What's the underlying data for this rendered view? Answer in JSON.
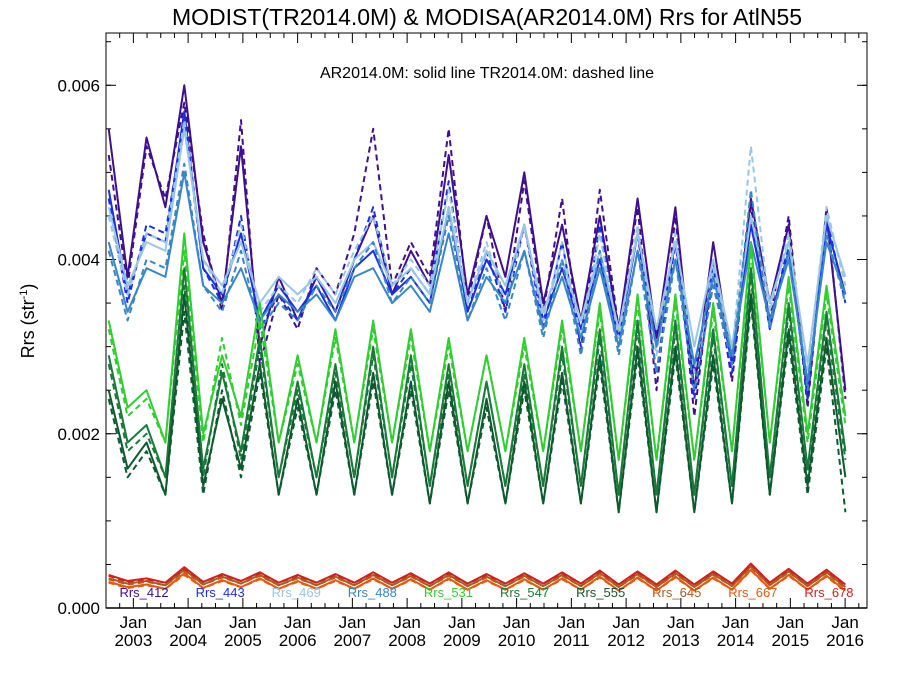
{
  "chart_data": {
    "type": "line",
    "title": "MODIST(TR2014.0M) & MODISA(AR2014.0M)  Rrs for AtlN55",
    "annotation": "AR2014.0M: solid line   TR2014.0M: dashed line",
    "ylabel": "Rrs (str",
    "ylabel_sup": "-1",
    "ylabel_close": ")",
    "ylim": [
      0.0,
      0.0066
    ],
    "xlim": [
      2002.5,
      2016.4
    ],
    "y_ticks": [
      {
        "v": 0.0,
        "label": "0.000"
      },
      {
        "v": 0.002,
        "label": "0.002"
      },
      {
        "v": 0.004,
        "label": "0.004"
      },
      {
        "v": 0.006,
        "label": "0.006"
      }
    ],
    "x_ticks": [
      {
        "v": 2003.0,
        "top": "Jan",
        "bottom": "2003"
      },
      {
        "v": 2004.0,
        "top": "Jan",
        "bottom": "2004"
      },
      {
        "v": 2005.0,
        "top": "Jan",
        "bottom": "2005"
      },
      {
        "v": 2006.0,
        "top": "Jan",
        "bottom": "2006"
      },
      {
        "v": 2007.0,
        "top": "Jan",
        "bottom": "2007"
      },
      {
        "v": 2008.0,
        "top": "Jan",
        "bottom": "2008"
      },
      {
        "v": 2009.0,
        "top": "Jan",
        "bottom": "2009"
      },
      {
        "v": 2010.0,
        "top": "Jan",
        "bottom": "2010"
      },
      {
        "v": 2011.0,
        "top": "Jan",
        "bottom": "2011"
      },
      {
        "v": 2012.0,
        "top": "Jan",
        "bottom": "2012"
      },
      {
        "v": 2013.0,
        "top": "Jan",
        "bottom": "2013"
      },
      {
        "v": 2014.0,
        "top": "Jan",
        "bottom": "2014"
      },
      {
        "v": 2015.0,
        "top": "Jan",
        "bottom": "2015"
      },
      {
        "v": 2016.0,
        "top": "Jan",
        "bottom": "2016"
      }
    ],
    "legend_position": "bottom",
    "series": [
      {
        "name": "Rrs_412",
        "color": "#3f0f8c",
        "solid": [
          0.0055,
          0.0038,
          0.0054,
          0.0046,
          0.006,
          0.0042,
          0.0035,
          0.0053,
          0.003,
          0.0038,
          0.0033,
          0.0038,
          0.0034,
          0.004,
          0.0045,
          0.0036,
          0.0041,
          0.0037,
          0.0052,
          0.0036,
          0.0045,
          0.0038,
          0.005,
          0.0035,
          0.0044,
          0.0033,
          0.0045,
          0.0032,
          0.0047,
          0.0031,
          0.0046,
          0.0025,
          0.0042,
          0.0028,
          0.0047,
          0.0035,
          0.0044,
          0.0024,
          0.0045,
          0.0025
        ],
        "dashed": [
          0.0052,
          0.0037,
          0.0053,
          0.0047,
          0.0058,
          0.0043,
          0.0034,
          0.0056,
          0.0028,
          0.0036,
          0.0032,
          0.0039,
          0.0036,
          0.0043,
          0.0055,
          0.0037,
          0.0042,
          0.0038,
          0.0055,
          0.0035,
          0.0045,
          0.0034,
          0.0049,
          0.0034,
          0.0047,
          0.0029,
          0.0048,
          0.0032,
          0.0046,
          0.0025,
          0.0045,
          0.0022,
          0.004,
          0.0026,
          0.0046,
          0.0033,
          0.0045,
          0.0023,
          0.0046,
          0.0024
        ]
      },
      {
        "name": "Rrs_443",
        "color": "#1a2fe0",
        "solid": [
          0.0048,
          0.0036,
          0.0043,
          0.0042,
          0.0057,
          0.0039,
          0.0036,
          0.0043,
          0.0033,
          0.0037,
          0.0034,
          0.0037,
          0.0033,
          0.0039,
          0.0041,
          0.0036,
          0.0038,
          0.0035,
          0.0046,
          0.0034,
          0.004,
          0.0036,
          0.0044,
          0.0033,
          0.0039,
          0.0032,
          0.004,
          0.0031,
          0.0043,
          0.003,
          0.0042,
          0.0027,
          0.0039,
          0.0028,
          0.0044,
          0.0033,
          0.0041,
          0.0025,
          0.0044,
          0.0036
        ],
        "dashed": [
          0.0047,
          0.0035,
          0.0044,
          0.0043,
          0.0056,
          0.0039,
          0.0035,
          0.0045,
          0.0032,
          0.0036,
          0.0033,
          0.0038,
          0.0034,
          0.004,
          0.0046,
          0.0036,
          0.0039,
          0.0036,
          0.0049,
          0.0034,
          0.0041,
          0.0034,
          0.0044,
          0.0032,
          0.0042,
          0.003,
          0.0044,
          0.0031,
          0.0043,
          0.0027,
          0.0042,
          0.0024,
          0.0038,
          0.0027,
          0.0045,
          0.0032,
          0.0042,
          0.0024,
          0.0045,
          0.0035
        ]
      },
      {
        "name": "Rrs_469",
        "color": "#9ac6e6",
        "solid": [
          0.0046,
          0.0037,
          0.0042,
          0.0041,
          0.0055,
          0.004,
          0.0037,
          0.0042,
          0.0035,
          0.0038,
          0.0036,
          0.0038,
          0.0035,
          0.004,
          0.0042,
          0.0037,
          0.0039,
          0.0036,
          0.0046,
          0.0035,
          0.0041,
          0.0037,
          0.0044,
          0.0034,
          0.004,
          0.0033,
          0.0041,
          0.0032,
          0.0043,
          0.0032,
          0.0042,
          0.003,
          0.004,
          0.003,
          0.0045,
          0.0035,
          0.0042,
          0.0028,
          0.0045,
          0.0038
        ],
        "dashed": [
          0.0045,
          0.0036,
          0.0043,
          0.0042,
          0.0056,
          0.004,
          0.0036,
          0.0044,
          0.0034,
          0.0037,
          0.0035,
          0.0039,
          0.0036,
          0.0041,
          0.0045,
          0.0037,
          0.004,
          0.0037,
          0.0048,
          0.0035,
          0.0042,
          0.0035,
          0.0044,
          0.0033,
          0.0042,
          0.0031,
          0.0043,
          0.0031,
          0.0044,
          0.0029,
          0.0043,
          0.0027,
          0.0039,
          0.0029,
          0.0053,
          0.0034,
          0.0043,
          0.0027,
          0.0046,
          0.0037
        ]
      },
      {
        "name": "Rrs_488",
        "color": "#3a86c4",
        "solid": [
          0.0042,
          0.0034,
          0.0039,
          0.0038,
          0.005,
          0.0037,
          0.0035,
          0.0039,
          0.0033,
          0.0036,
          0.0034,
          0.0036,
          0.0033,
          0.0038,
          0.0039,
          0.0035,
          0.0037,
          0.0034,
          0.0043,
          0.0033,
          0.0038,
          0.0035,
          0.0041,
          0.0032,
          0.0038,
          0.0031,
          0.0039,
          0.003,
          0.0041,
          0.003,
          0.004,
          0.0028,
          0.0038,
          0.0029,
          0.0042,
          0.0033,
          0.004,
          0.0026,
          0.0042,
          0.0036
        ],
        "dashed": [
          0.0041,
          0.0033,
          0.004,
          0.0039,
          0.0051,
          0.0037,
          0.0034,
          0.0041,
          0.0032,
          0.0035,
          0.0033,
          0.0037,
          0.0034,
          0.0039,
          0.0042,
          0.0035,
          0.0038,
          0.0035,
          0.0045,
          0.0033,
          0.0039,
          0.0033,
          0.0041,
          0.0031,
          0.004,
          0.0029,
          0.0041,
          0.0029,
          0.0041,
          0.0027,
          0.004,
          0.0025,
          0.0037,
          0.0028,
          0.0048,
          0.0032,
          0.0041,
          0.0025,
          0.0043,
          0.0035
        ]
      },
      {
        "name": "Rrs_531",
        "color": "#33cc33",
        "solid": [
          0.0033,
          0.0023,
          0.0025,
          0.0019,
          0.0043,
          0.002,
          0.0029,
          0.0022,
          0.0035,
          0.0019,
          0.0029,
          0.0019,
          0.0032,
          0.0019,
          0.0033,
          0.0019,
          0.0032,
          0.0018,
          0.0031,
          0.0018,
          0.0029,
          0.0018,
          0.0031,
          0.0018,
          0.0033,
          0.0018,
          0.0035,
          0.0017,
          0.0036,
          0.0017,
          0.0036,
          0.0017,
          0.0035,
          0.0018,
          0.0042,
          0.0019,
          0.0038,
          0.002,
          0.0037,
          0.0022
        ],
        "dashed": [
          0.0032,
          0.0022,
          0.0024,
          0.0019,
          0.0041,
          0.0019,
          0.0031,
          0.0021,
          0.0033,
          0.0019,
          0.0028,
          0.0019,
          0.0031,
          0.0019,
          0.0032,
          0.0019,
          0.0031,
          0.0018,
          0.003,
          0.0018,
          0.0029,
          0.0018,
          0.003,
          0.0018,
          0.0032,
          0.0018,
          0.0034,
          0.0017,
          0.0035,
          0.0017,
          0.0035,
          0.0017,
          0.0034,
          0.0018,
          0.0041,
          0.0019,
          0.0037,
          0.0019,
          0.0036,
          0.0021
        ]
      },
      {
        "name": "Rrs_547",
        "color": "#1a7a3a",
        "solid": [
          0.0029,
          0.0019,
          0.0021,
          0.0015,
          0.0039,
          0.0016,
          0.0027,
          0.0018,
          0.0031,
          0.0015,
          0.0026,
          0.0015,
          0.0028,
          0.0015,
          0.003,
          0.0015,
          0.0029,
          0.0014,
          0.0028,
          0.0014,
          0.0026,
          0.0014,
          0.0028,
          0.0014,
          0.003,
          0.0014,
          0.0032,
          0.0013,
          0.0033,
          0.0013,
          0.0033,
          0.0013,
          0.0032,
          0.0014,
          0.0039,
          0.0015,
          0.0035,
          0.0016,
          0.0034,
          0.0018
        ],
        "dashed": [
          0.0028,
          0.0018,
          0.002,
          0.0015,
          0.0037,
          0.0015,
          0.0028,
          0.0017,
          0.003,
          0.0015,
          0.0025,
          0.0015,
          0.0027,
          0.0015,
          0.0029,
          0.0015,
          0.0028,
          0.0014,
          0.0027,
          0.0014,
          0.0026,
          0.0014,
          0.0027,
          0.0014,
          0.0029,
          0.0014,
          0.0031,
          0.0013,
          0.0032,
          0.0013,
          0.0032,
          0.0013,
          0.0031,
          0.0014,
          0.0038,
          0.0015,
          0.0034,
          0.0015,
          0.0033,
          0.0017
        ]
      },
      {
        "name": "Rrs_555",
        "color": "#0e5a30",
        "solid": [
          0.0025,
          0.0016,
          0.0019,
          0.0013,
          0.0036,
          0.0014,
          0.0024,
          0.0016,
          0.0028,
          0.0013,
          0.0024,
          0.0013,
          0.0026,
          0.0013,
          0.0027,
          0.0013,
          0.0026,
          0.0012,
          0.0026,
          0.0012,
          0.0024,
          0.0012,
          0.0026,
          0.0012,
          0.0027,
          0.0012,
          0.0029,
          0.0011,
          0.003,
          0.0011,
          0.003,
          0.0011,
          0.0029,
          0.0012,
          0.0036,
          0.0013,
          0.0032,
          0.0014,
          0.0031,
          0.0015
        ],
        "dashed": [
          0.0024,
          0.0015,
          0.0018,
          0.0013,
          0.0034,
          0.0013,
          0.0025,
          0.0015,
          0.0027,
          0.0013,
          0.0023,
          0.0013,
          0.0025,
          0.0013,
          0.0026,
          0.0013,
          0.0025,
          0.0012,
          0.0025,
          0.0012,
          0.0023,
          0.0012,
          0.0025,
          0.0012,
          0.0026,
          0.0012,
          0.0028,
          0.0011,
          0.0029,
          0.0011,
          0.0029,
          0.0011,
          0.0028,
          0.0012,
          0.0035,
          0.0013,
          0.0031,
          0.0013,
          0.003,
          0.0011
        ]
      },
      {
        "name": "Rrs_645",
        "color": "#b05a1a",
        "solid": [
          0.00034,
          0.00028,
          0.00031,
          0.00026,
          0.00044,
          0.00027,
          0.00036,
          0.00028,
          0.00038,
          0.00026,
          0.00035,
          0.00026,
          0.00036,
          0.00026,
          0.00038,
          0.00026,
          0.00037,
          0.00025,
          0.00038,
          0.00025,
          0.00036,
          0.00025,
          0.00037,
          0.00025,
          0.00038,
          0.00025,
          0.0004,
          0.00024,
          0.00039,
          0.00024,
          0.0004,
          0.00024,
          0.00039,
          0.00025,
          0.00048,
          0.00026,
          0.00042,
          0.00025,
          0.00041,
          0.00024
        ],
        "dashed": [
          0.00033,
          0.00027,
          0.0003,
          0.00026,
          0.00042,
          0.00027,
          0.00035,
          0.00028,
          0.00037,
          0.00026,
          0.00034,
          0.00026,
          0.00035,
          0.00026,
          0.00037,
          0.00026,
          0.00036,
          0.00025,
          0.00037,
          0.00025,
          0.00035,
          0.00025,
          0.00036,
          0.00025,
          0.00037,
          0.00025,
          0.00039,
          0.00024,
          0.00038,
          0.00024,
          0.00039,
          0.00024,
          0.00038,
          0.00025,
          0.00047,
          0.00026,
          0.00041,
          0.00025,
          0.0004,
          0.00023
        ]
      },
      {
        "name": "Rrs_667",
        "color": "#e05a10",
        "solid": [
          0.0003,
          0.00024,
          0.00027,
          0.00022,
          0.0004,
          0.00023,
          0.00032,
          0.00024,
          0.00034,
          0.00022,
          0.00031,
          0.00022,
          0.00032,
          0.00022,
          0.00034,
          0.00022,
          0.00033,
          0.00021,
          0.00034,
          0.00021,
          0.00032,
          0.00021,
          0.00033,
          0.00021,
          0.00034,
          0.00021,
          0.00036,
          0.0002,
          0.00035,
          0.0002,
          0.00036,
          0.0002,
          0.00035,
          0.00021,
          0.00044,
          0.00022,
          0.00038,
          0.00021,
          0.00037,
          0.0002
        ],
        "dashed": [
          0.00029,
          0.00023,
          0.00026,
          0.00022,
          0.00038,
          0.00023,
          0.00031,
          0.00024,
          0.00033,
          0.00022,
          0.0003,
          0.00022,
          0.00031,
          0.00022,
          0.00033,
          0.00022,
          0.00032,
          0.00021,
          0.00033,
          0.00021,
          0.00031,
          0.00021,
          0.00032,
          0.00021,
          0.00033,
          0.00021,
          0.00035,
          0.0002,
          0.00034,
          0.0002,
          0.00035,
          0.0002,
          0.00034,
          0.00021,
          0.00043,
          0.00022,
          0.00037,
          0.00021,
          0.00036,
          0.00019
        ]
      },
      {
        "name": "Rrs_678",
        "color": "#cc2222",
        "solid": [
          0.00038,
          0.00031,
          0.00034,
          0.00029,
          0.00047,
          0.0003,
          0.00039,
          0.00031,
          0.00041,
          0.00029,
          0.00038,
          0.00029,
          0.00039,
          0.00029,
          0.00041,
          0.00029,
          0.0004,
          0.00028,
          0.00041,
          0.00028,
          0.00039,
          0.00028,
          0.0004,
          0.00028,
          0.00041,
          0.00028,
          0.00043,
          0.00027,
          0.00042,
          0.00027,
          0.00043,
          0.00027,
          0.00042,
          0.00028,
          0.00051,
          0.00029,
          0.00045,
          0.00028,
          0.00044,
          0.00027
        ],
        "dashed": [
          0.00037,
          0.0003,
          0.00033,
          0.00029,
          0.00045,
          0.0003,
          0.00038,
          0.00031,
          0.0004,
          0.00029,
          0.00037,
          0.00029,
          0.00038,
          0.00029,
          0.0004,
          0.00029,
          0.00039,
          0.00028,
          0.0004,
          0.00028,
          0.00038,
          0.00028,
          0.00039,
          0.00028,
          0.0004,
          0.00028,
          0.00042,
          0.00027,
          0.00041,
          0.00027,
          0.00042,
          0.00027,
          0.00041,
          0.00028,
          0.0005,
          0.00029,
          0.00044,
          0.00028,
          0.00043,
          0.00026
        ]
      }
    ]
  }
}
